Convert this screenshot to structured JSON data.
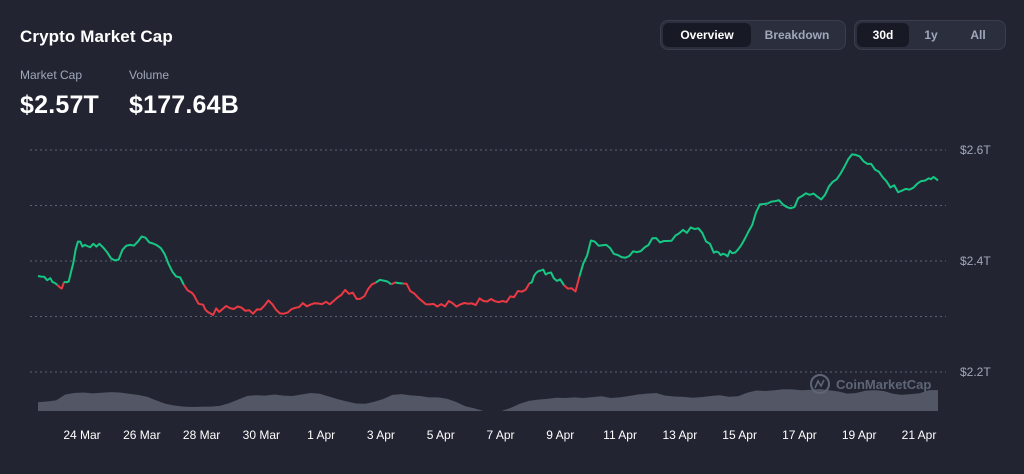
{
  "header": {
    "title": "Crypto Market Cap",
    "view_tabs": [
      "Overview",
      "Breakdown"
    ],
    "view_active": "Overview",
    "range_tabs": [
      "30d",
      "1y",
      "All"
    ],
    "range_active": "30d"
  },
  "stats": [
    {
      "label": "Market Cap",
      "value": "$2.57T"
    },
    {
      "label": "Volume",
      "value": "$177.64B"
    }
  ],
  "watermark": "CoinMarketCap",
  "colors": {
    "up": "#16c784",
    "down": "#ea3943",
    "volume": "#5b5f6e",
    "background": "#222531"
  },
  "chart_data": {
    "type": "line",
    "title": "",
    "ylabel": "",
    "yticks": [
      "$2.6T",
      "$2.4T",
      "$2.2T"
    ],
    "ylim_trillions": [
      2.16,
      2.64
    ],
    "baseline_trillions": 2.36,
    "x_tick_labels": [
      "24 Mar",
      "26 Mar",
      "28 Mar",
      "30 Mar",
      "1 Apr",
      "3 Apr",
      "5 Apr",
      "7 Apr",
      "9 Apr",
      "11 Apr",
      "13 Apr",
      "15 Apr",
      "17 Apr",
      "19 Apr",
      "21 Apr"
    ],
    "grid": true,
    "series": [
      {
        "unit": "trillion USD",
        "x_days": [
          0,
          0.4,
          0.7,
          1.0,
          1.3,
          1.6,
          2.0,
          2.5,
          3.0,
          3.5,
          4.0,
          4.5,
          5.0,
          5.3,
          5.6,
          6.0,
          6.5,
          7.0,
          7.5,
          8.0,
          8.5,
          9.0,
          9.5,
          10.0,
          10.5,
          11.0,
          11.5,
          12.0,
          12.5,
          13.0,
          13.5,
          14.0,
          14.5,
          15.0,
          15.5,
          16.0,
          16.3,
          16.6,
          17.0,
          17.5,
          18.0,
          18.5,
          19.0,
          19.5,
          20.0,
          20.5,
          21.0,
          21.5,
          22.0,
          22.3,
          22.6,
          23.0,
          23.5,
          24.0,
          24.5,
          25.0,
          25.5,
          26.0,
          26.5,
          27.0,
          27.5,
          28.0,
          28.5,
          29.0,
          29.3
        ],
        "y": [
          2.373,
          2.369,
          2.353,
          2.363,
          2.435,
          2.427,
          2.431,
          2.401,
          2.429,
          2.442,
          2.423,
          2.372,
          2.343,
          2.322,
          2.306,
          2.313,
          2.318,
          2.305,
          2.329,
          2.305,
          2.317,
          2.324,
          2.322,
          2.348,
          2.332,
          2.361,
          2.358,
          2.359,
          2.328,
          2.318,
          2.324,
          2.323,
          2.328,
          2.326,
          2.335,
          2.36,
          2.382,
          2.378,
          2.367,
          2.345,
          2.437,
          2.429,
          2.407,
          2.416,
          2.441,
          2.436,
          2.456,
          2.459,
          2.415,
          2.413,
          2.414,
          2.439,
          2.502,
          2.508,
          2.495,
          2.522,
          2.511,
          2.547,
          2.592,
          2.575,
          2.551,
          2.524,
          2.532,
          2.549,
          2.545
        ]
      }
    ],
    "volume_relative": [
      0.4,
      0.43,
      0.48,
      0.75,
      0.82,
      0.84,
      0.8,
      0.83,
      0.86,
      0.84,
      0.78,
      0.73,
      0.65,
      0.48,
      0.33,
      0.25,
      0.2,
      0.18,
      0.19,
      0.2,
      0.23,
      0.35,
      0.52,
      0.68,
      0.72,
      0.7,
      0.75,
      0.7,
      0.68,
      0.75,
      0.82,
      0.78,
      0.66,
      0.53,
      0.43,
      0.34,
      0.33,
      0.42,
      0.55,
      0.73,
      0.77,
      0.71,
      0.68,
      0.62,
      0.62,
      0.56,
      0.41,
      0.22,
      0.12,
      0.0,
      0.0,
      0.0,
      0.14,
      0.33,
      0.46,
      0.52,
      0.55,
      0.6,
      0.59,
      0.62,
      0.59,
      0.63,
      0.67,
      0.59,
      0.62,
      0.68,
      0.75,
      0.79,
      0.82,
      0.7,
      0.66,
      0.64,
      0.6,
      0.63,
      0.68,
      0.72,
      0.65,
      0.67,
      0.83,
      0.93,
      0.91,
      0.94,
      0.99,
      0.98,
      0.94,
      0.97,
      1.0,
      0.94,
      0.89,
      0.79,
      0.82,
      0.92,
      0.95,
      0.91,
      0.79,
      0.73,
      0.77,
      0.81,
      0.95,
      0.95
    ]
  }
}
